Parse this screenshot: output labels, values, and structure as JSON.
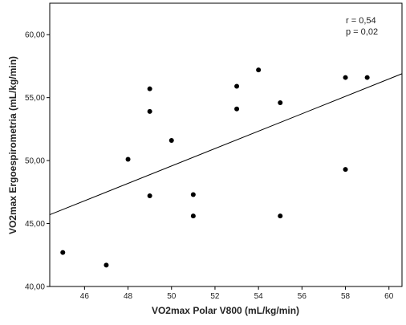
{
  "chart_data": {
    "type": "scatter",
    "xlabel": "VO2max Polar V800 (mL/kg/min)",
    "ylabel": "VO2max Ergoespirometria (mL/kg/min)",
    "xlim": [
      44.4,
      60.6
    ],
    "ylim": [
      40,
      62.5
    ],
    "x_ticks": [
      46,
      48,
      50,
      52,
      54,
      56,
      58,
      60
    ],
    "x_tick_labels": [
      "46",
      "48",
      "50",
      "52",
      "54",
      "56",
      "58",
      "60"
    ],
    "y_ticks": [
      40,
      45,
      50,
      55,
      60
    ],
    "y_tick_labels": [
      "40,00",
      "45,00",
      "50,00",
      "55,00",
      "60,00"
    ],
    "grid": false,
    "legend": "none",
    "annotations": [
      "r = 0,54",
      "p = 0,02"
    ],
    "points": [
      {
        "x": 45,
        "y": 42.7
      },
      {
        "x": 47,
        "y": 41.7
      },
      {
        "x": 48,
        "y": 50.1
      },
      {
        "x": 49,
        "y": 55.7
      },
      {
        "x": 49,
        "y": 53.9
      },
      {
        "x": 49,
        "y": 47.2
      },
      {
        "x": 50,
        "y": 51.6
      },
      {
        "x": 51,
        "y": 47.3
      },
      {
        "x": 51,
        "y": 45.6
      },
      {
        "x": 53,
        "y": 55.9
      },
      {
        "x": 53,
        "y": 54.1
      },
      {
        "x": 54,
        "y": 57.2
      },
      {
        "x": 55,
        "y": 54.6
      },
      {
        "x": 55,
        "y": 45.6
      },
      {
        "x": 58,
        "y": 56.6
      },
      {
        "x": 58,
        "y": 49.3
      },
      {
        "x": 59,
        "y": 56.6
      }
    ],
    "fit_line": {
      "x": [
        44.4,
        60.6
      ],
      "y": [
        45.7,
        56.9
      ]
    },
    "marker_color": "#000000",
    "line_color": "#000000"
  }
}
